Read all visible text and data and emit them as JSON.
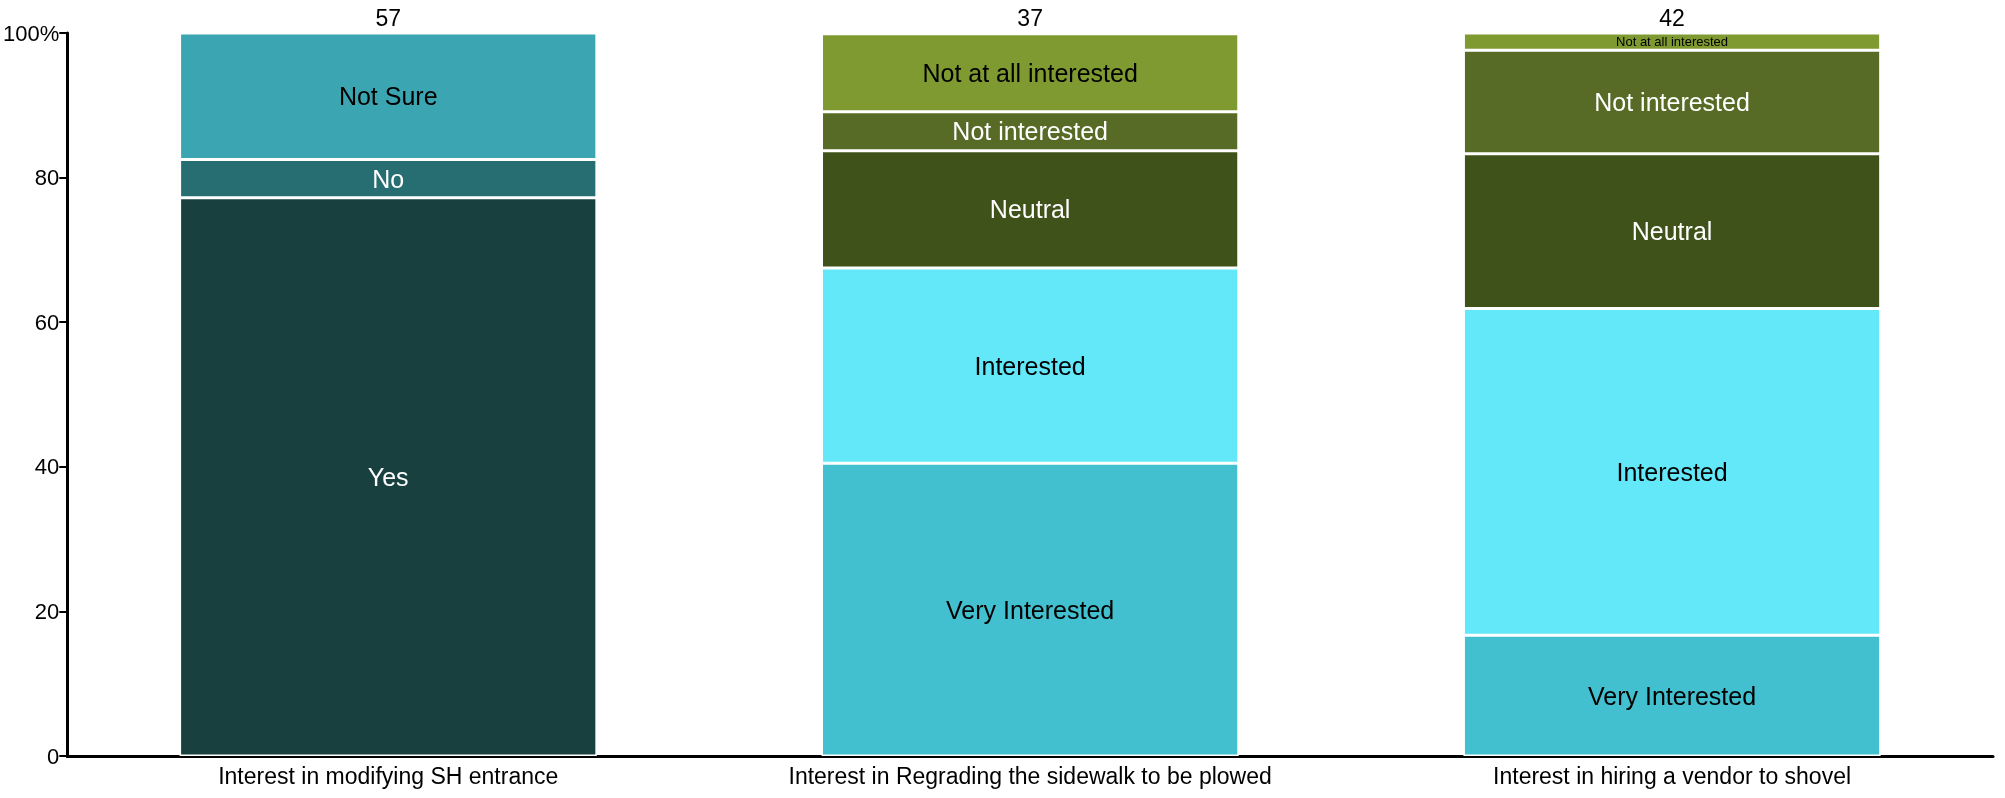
{
  "chart_data": {
    "type": "bar",
    "stacked": true,
    "categories": [
      "Interest in modifying SH entrance",
      "Interest in Regrading the sidewalk to be plowed",
      "Interest in hiring a vendor to shovel"
    ],
    "series": [
      {
        "name": "Yes",
        "color": "#18403f",
        "values": [
          77.2,
          null,
          null
        ]
      },
      {
        "name": "No",
        "color": "#276e73",
        "values": [
          5.3,
          null,
          null
        ]
      },
      {
        "name": "Not Sure",
        "color": "#3ba5b2",
        "values": [
          17.5,
          null,
          null
        ]
      },
      {
        "name": "Very Interested",
        "color": "#43c0cf",
        "values": [
          null,
          40.5,
          16.7
        ]
      },
      {
        "name": "Interested",
        "color": "#63e8f9",
        "values": [
          null,
          27.0,
          45.2
        ]
      },
      {
        "name": "Neutral",
        "color": "#3e5219",
        "values": [
          null,
          16.2,
          21.4
        ]
      },
      {
        "name": "Not interested",
        "color": "#586b26",
        "values": [
          null,
          5.4,
          14.3
        ]
      },
      {
        "name": "Not at all interested",
        "color": "#7e9a31",
        "values": [
          null,
          10.8,
          2.4
        ]
      }
    ],
    "annotations": [
      {
        "text": "57",
        "x": "Interest in modifying SH entrance",
        "y": 100
      },
      {
        "text": "37",
        "x": "Interest in Regrading the sidewalk to be plowed",
        "y": 100
      },
      {
        "text": "42",
        "x": "Interest in hiring a vendor to shovel",
        "y": 100
      }
    ],
    "ylim": [
      0,
      100
    ],
    "yticks": [
      0,
      20,
      40,
      60,
      80,
      {
        "value": 100,
        "label": "100%"
      }
    ],
    "grid": false,
    "legend": false
  }
}
